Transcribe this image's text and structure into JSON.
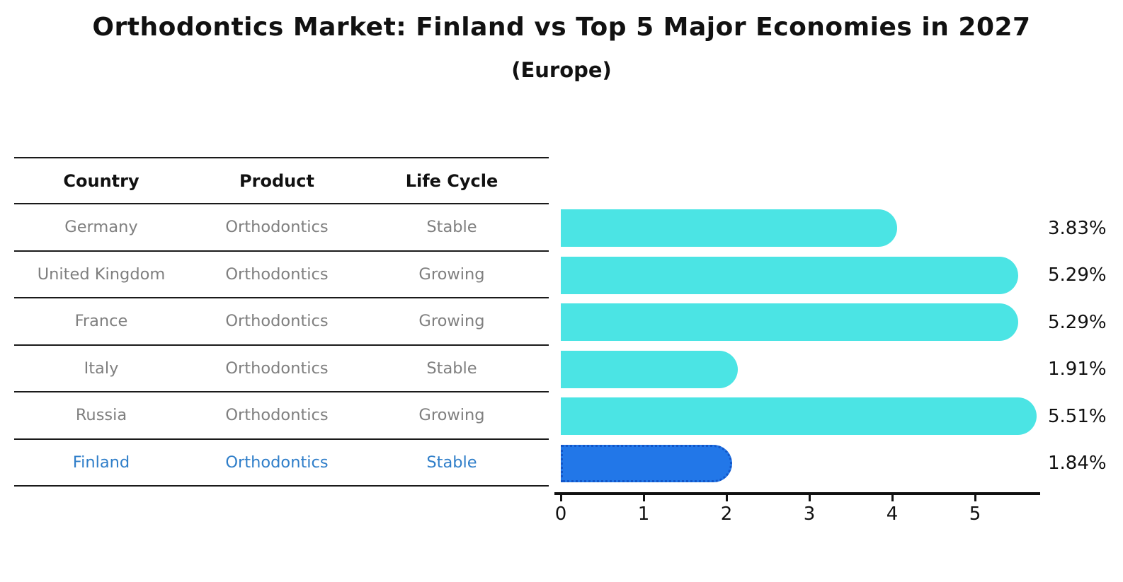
{
  "title": "Orthodontics Market: Finland vs Top 5 Major Economies in 2027",
  "subtitle": "(Europe)",
  "colors": {
    "bar_default": "#4be4e4",
    "bar_highlight": "#2277e8",
    "bar_highlight_border": "#1256c8",
    "highlight_text": "#2f7ec9",
    "row_text": "#7f7f7f",
    "heading_text": "#111111",
    "axis": "#111111",
    "background": "#ffffff"
  },
  "table": {
    "headers": [
      "Country",
      "Product",
      "Life Cycle"
    ],
    "rows": [
      {
        "country": "Germany",
        "product": "Orthodontics",
        "life_cycle": "Stable",
        "highlight": false
      },
      {
        "country": "United Kingdom",
        "product": "Orthodontics",
        "life_cycle": "Growing",
        "highlight": false
      },
      {
        "country": "France",
        "product": "Orthodontics",
        "life_cycle": "Growing",
        "highlight": false
      },
      {
        "country": "Italy",
        "product": "Orthodontics",
        "life_cycle": "Stable",
        "highlight": false
      },
      {
        "country": "Russia",
        "product": "Orthodontics",
        "life_cycle": "Growing",
        "highlight": false
      },
      {
        "country": "Finland",
        "product": "Orthodontics",
        "life_cycle": "Stable",
        "highlight": true
      }
    ]
  },
  "chart_data": {
    "type": "bar",
    "orientation": "horizontal",
    "title": "Orthodontics Market: Finland vs Top 5 Major Economies in 2027",
    "subtitle": "(Europe)",
    "categories": [
      "Germany",
      "United Kingdom",
      "France",
      "Italy",
      "Russia",
      "Finland"
    ],
    "values": [
      3.83,
      5.29,
      5.29,
      1.91,
      5.51,
      1.84
    ],
    "value_labels": [
      "3.83%",
      "5.29%",
      "5.29%",
      "1.91%",
      "5.51%",
      "1.84%"
    ],
    "highlight_index": 5,
    "xlabel": "",
    "ylabel": "",
    "xlim": [
      0,
      5.8
    ],
    "xticks": [
      0,
      1,
      2,
      3,
      4,
      5
    ],
    "grid": false,
    "legend": false
  }
}
